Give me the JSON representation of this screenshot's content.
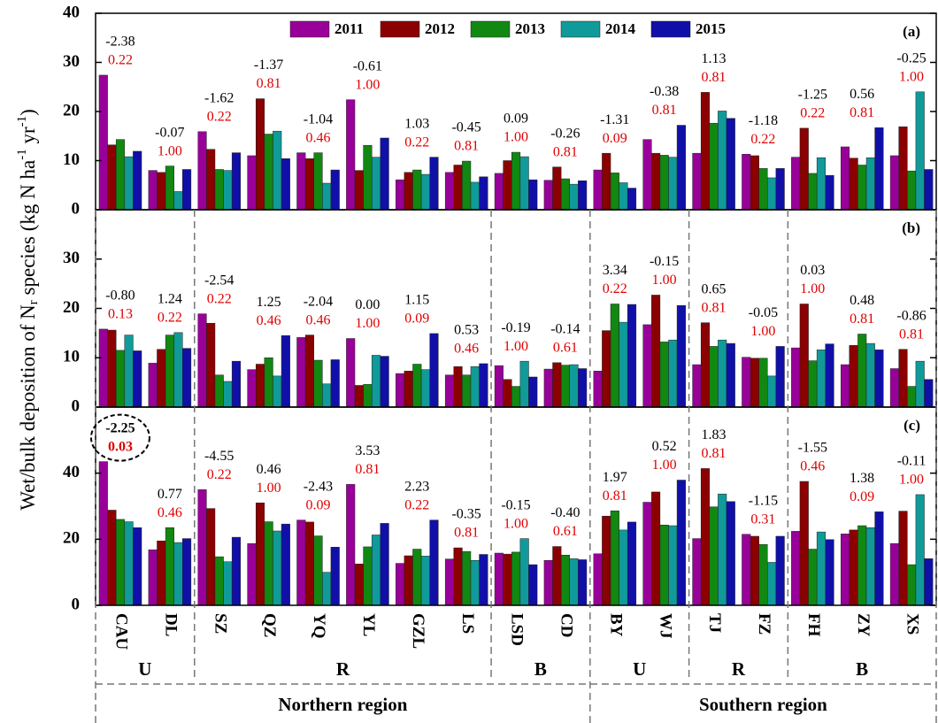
{
  "chart_data": {
    "type": "bar",
    "y_label": [
      "Wet/bulk deposition of N",
      "r",
      " species (kg N ha",
      "-1",
      " yr",
      "-1",
      ")"
    ],
    "categories": [
      "CAU",
      "DL",
      "SZ",
      "QZ",
      "YQ",
      "YL",
      "GZL",
      "LS",
      "LSD",
      "CD",
      "BY",
      "WJ",
      "TJ",
      "FZ",
      "FH",
      "ZY",
      "XS"
    ],
    "groups": [
      "U",
      "R",
      "B",
      "U",
      "R",
      "B"
    ],
    "regions": [
      "Northern region",
      "Southern region"
    ],
    "years": [
      {
        "name": "2011",
        "color": "#990099"
      },
      {
        "name": "2012",
        "color": "#8b0000"
      },
      {
        "name": "2013",
        "color": "#118811"
      },
      {
        "name": "2014",
        "color": "#119a9a"
      },
      {
        "name": "2015",
        "color": "#1010a8"
      }
    ],
    "panels": [
      {
        "label": "(a)",
        "ylim": [
          0,
          40
        ],
        "yticks": [
          0,
          10,
          20,
          30,
          40
        ],
        "series": [
          {
            "values": [
              27.4,
              8.0,
              15.9,
              11.0,
              11.6,
              22.4,
              6.1,
              7.6,
              7.4,
              6.0,
              8.1,
              14.3,
              11.5,
              11.3,
              10.7,
              12.8,
              11.0
            ]
          },
          {
            "values": [
              13.2,
              7.6,
              12.3,
              22.6,
              10.4,
              8.0,
              7.6,
              9.1,
              10.0,
              8.7,
              11.5,
              11.5,
              23.9,
              11.0,
              16.6,
              10.5,
              16.9
            ]
          },
          {
            "values": [
              14.3,
              8.9,
              8.2,
              15.4,
              11.6,
              13.1,
              8.1,
              9.9,
              11.7,
              6.3,
              7.5,
              11.1,
              17.6,
              8.4,
              7.4,
              9.1,
              7.9
            ]
          },
          {
            "values": [
              10.8,
              3.7,
              8.0,
              16.0,
              5.4,
              10.7,
              7.2,
              5.6,
              10.8,
              5.2,
              5.5,
              10.7,
              20.1,
              6.5,
              10.6,
              10.6,
              24.0
            ]
          },
          {
            "values": [
              11.9,
              8.2,
              11.6,
              10.4,
              8.1,
              14.6,
              10.7,
              6.7,
              6.1,
              5.9,
              4.4,
              17.2,
              18.6,
              8.4,
              7.0,
              16.7,
              8.2
            ]
          }
        ],
        "slopes": [
          "-2.38",
          "-0.07",
          "-1.62",
          "-1.37",
          "-1.04",
          "-0.61",
          "1.03",
          "-0.45",
          "0.09",
          "-0.26",
          "-1.31",
          "-0.38",
          "1.13",
          "-1.18",
          "-1.25",
          "0.56",
          "-0.25"
        ],
        "p_values": [
          "0.22",
          "1.00",
          "0.22",
          "0.81",
          "0.46",
          "1.00",
          "0.22",
          "0.81",
          "1.00",
          "0.81",
          "0.09",
          "0.81",
          "0.81",
          "0.22",
          "0.22",
          "0.81",
          "1.00"
        ]
      },
      {
        "label": "(b)",
        "ylim": [
          0,
          40
        ],
        "yticks": [
          0,
          10,
          20,
          30
        ],
        "series": [
          {
            "values": [
              15.8,
              8.9,
              18.9,
              7.6,
              14.1,
              13.9,
              6.8,
              6.5,
              8.4,
              7.7,
              7.3,
              16.7,
              8.6,
              10.1,
              12.0,
              8.6,
              7.8
            ]
          },
          {
            "values": [
              15.6,
              11.7,
              17.0,
              8.7,
              14.6,
              4.4,
              7.3,
              8.2,
              5.6,
              9.0,
              15.5,
              22.7,
              17.1,
              9.9,
              20.9,
              12.5,
              11.7
            ]
          },
          {
            "values": [
              11.5,
              14.6,
              6.5,
              10.0,
              9.5,
              4.6,
              8.7,
              6.5,
              4.2,
              8.5,
              20.9,
              13.2,
              12.3,
              9.9,
              9.4,
              14.8,
              4.2
            ]
          },
          {
            "values": [
              14.6,
              15.1,
              5.2,
              6.3,
              4.7,
              10.5,
              7.6,
              8.2,
              9.3,
              8.6,
              17.2,
              13.6,
              13.6,
              6.3,
              11.6,
              12.9,
              9.3
            ]
          },
          {
            "values": [
              11.4,
              11.9,
              9.3,
              14.5,
              9.6,
              10.3,
              14.9,
              8.8,
              6.1,
              7.8,
              20.8,
              20.6,
              12.9,
              12.3,
              12.8,
              11.6,
              5.6
            ]
          }
        ],
        "slopes": [
          "-0.80",
          "1.24",
          "-2.54",
          "1.25",
          "-2.04",
          "0.00",
          "1.15",
          "0.53",
          "-0.19",
          "-0.14",
          "3.34",
          "-0.15",
          "0.65",
          "-0.05",
          "0.03",
          "0.48",
          "-0.86"
        ],
        "p_values": [
          "0.13",
          "0.22",
          "0.22",
          "0.46",
          "0.46",
          "1.00",
          "0.09",
          "0.46",
          "1.00",
          "0.61",
          "0.22",
          "1.00",
          "0.81",
          "1.00",
          "1.00",
          "0.81",
          "0.81"
        ]
      },
      {
        "label": "(c)",
        "ylim": [
          0,
          60
        ],
        "yticks": [
          0,
          20,
          40
        ],
        "series": [
          {
            "values": [
              43.5,
              16.8,
              35.0,
              18.7,
              25.8,
              36.6,
              12.7,
              14.0,
              15.8,
              13.6,
              15.6,
              31.2,
              20.2,
              21.5,
              22.4,
              21.6,
              18.7
            ]
          },
          {
            "values": [
              28.8,
              19.5,
              29.3,
              31.0,
              25.2,
              12.5,
              15.0,
              17.4,
              15.5,
              17.8,
              27.0,
              34.3,
              41.4,
              20.9,
              37.5,
              22.8,
              28.5
            ]
          },
          {
            "values": [
              26.0,
              23.5,
              14.7,
              25.3,
              21.0,
              17.7,
              17.0,
              16.3,
              16.1,
              15.2,
              28.6,
              24.3,
              29.8,
              18.4,
              17.0,
              24.1,
              12.3
            ]
          },
          {
            "values": [
              25.3,
              19.0,
              13.2,
              22.5,
              10.0,
              21.3,
              14.9,
              13.6,
              20.2,
              14.1,
              22.8,
              24.1,
              33.7,
              13.0,
              22.2,
              23.5,
              33.5
            ]
          },
          {
            "values": [
              23.5,
              20.2,
              20.6,
              24.6,
              17.6,
              24.8,
              25.8,
              15.4,
              12.3,
              13.8,
              25.2,
              37.9,
              31.4,
              20.9,
              19.9,
              28.3,
              14.1
            ]
          }
        ],
        "slopes": [
          "-2.25",
          "0.77",
          "-4.55",
          "0.46",
          "-2.43",
          "3.53",
          "2.23",
          "-0.35",
          "-0.15",
          "-0.40",
          "1.97",
          "0.52",
          "1.83",
          "-1.15",
          "-1.55",
          "1.38",
          "-0.11"
        ],
        "p_values": [
          "0.03",
          "0.46",
          "0.22",
          "1.00",
          "0.09",
          "0.81",
          "0.22",
          "0.81",
          "1.00",
          "0.61",
          "0.81",
          "1.00",
          "0.81",
          "0.31",
          "0.46",
          "0.09",
          "1.00"
        ]
      }
    ]
  }
}
